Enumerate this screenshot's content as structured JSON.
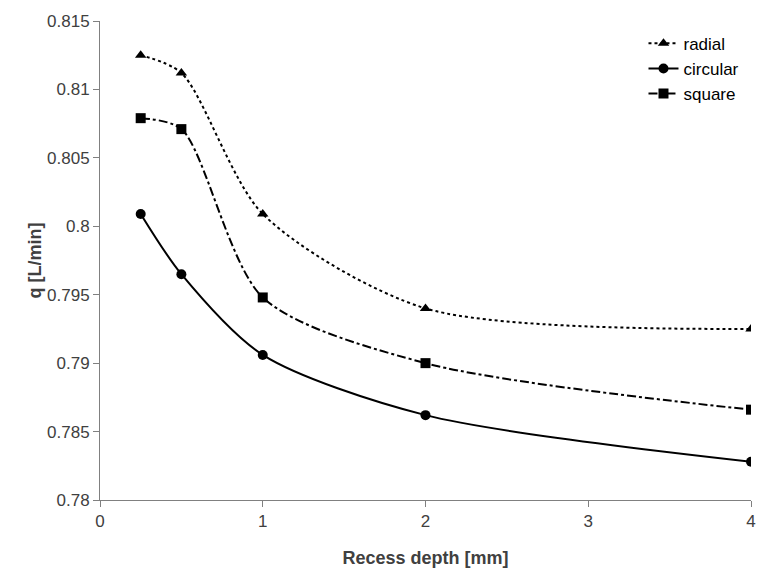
{
  "chart_data": {
    "type": "line",
    "x_label": "Recess depth [mm]",
    "y_label": "q [L/min]",
    "x": [
      0.25,
      0.5,
      1,
      2,
      4
    ],
    "series": [
      {
        "name": "radial",
        "color": "#000000",
        "marker": "triangle-up",
        "line_style": "dot",
        "values": [
          0.8125,
          0.8112,
          0.8009,
          0.794,
          0.7925
        ]
      },
      {
        "name": "circular",
        "color": "#000000",
        "marker": "circle",
        "line_style": "solid",
        "values": [
          0.8009,
          0.7965,
          0.7906,
          0.7862,
          0.7828
        ]
      },
      {
        "name": "square",
        "color": "#000000",
        "marker": "square",
        "line_style": "dashdot",
        "values": [
          0.8079,
          0.8071,
          0.7948,
          0.79,
          0.7866
        ]
      }
    ],
    "xlim": [
      0,
      4
    ],
    "xticks": [
      0,
      1,
      2,
      3,
      4
    ],
    "ylim": [
      0.78,
      0.815
    ],
    "yticks": [
      0.78,
      0.785,
      0.79,
      0.795,
      0.8,
      0.805,
      0.81,
      0.815
    ],
    "grid": false,
    "legend": "top right"
  }
}
